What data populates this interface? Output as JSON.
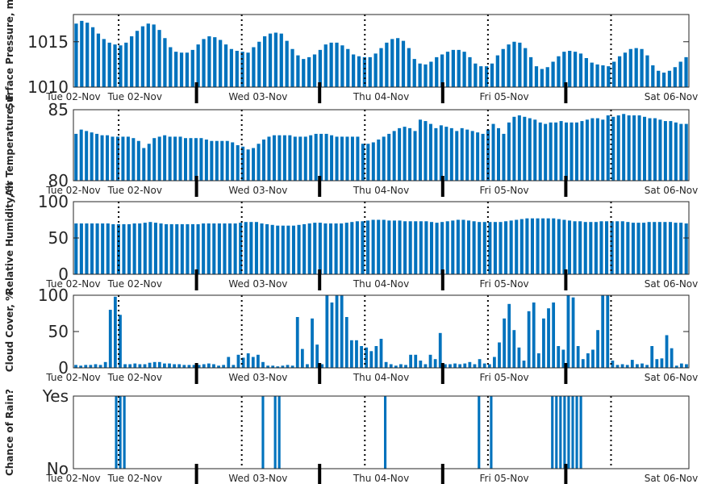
{
  "chart_data": [
    {
      "type": "bar",
      "ylabel": "Surface Pressure, mb",
      "ylim": [
        1010,
        1018
      ],
      "yticks": [
        1010,
        1015
      ],
      "xticklabels": [
        "Tue 02-Nov",
        "Tue 02-Nov",
        "Wed 03-Nov",
        "Thu 04-Nov",
        "Fri 05-Nov",
        "Sat 06-Nov"
      ],
      "color": "#0072bd",
      "values": [
        1017.0,
        1017.3,
        1017.1,
        1016.6,
        1015.9,
        1015.3,
        1014.9,
        1014.7,
        1014.6,
        1014.9,
        1015.6,
        1016.2,
        1016.7,
        1017.0,
        1016.9,
        1016.3,
        1015.4,
        1014.4,
        1013.9,
        1013.8,
        1013.8,
        1014.1,
        1014.7,
        1015.3,
        1015.6,
        1015.5,
        1015.2,
        1014.7,
        1014.2,
        1014.0,
        1013.9,
        1013.8,
        1014.4,
        1015.0,
        1015.6,
        1015.9,
        1016.0,
        1015.9,
        1015.1,
        1014.2,
        1013.5,
        1013.1,
        1013.3,
        1013.6,
        1014.1,
        1014.7,
        1014.9,
        1014.9,
        1014.6,
        1014.2,
        1013.6,
        1013.4,
        1013.3,
        1013.3,
        1013.7,
        1014.3,
        1014.9,
        1015.3,
        1015.4,
        1015.1,
        1014.3,
        1013.1,
        1012.6,
        1012.5,
        1012.8,
        1013.3,
        1013.6,
        1013.9,
        1014.1,
        1014.1,
        1013.9,
        1013.3,
        1012.6,
        1012.3,
        1012.3,
        1012.6,
        1013.5,
        1014.2,
        1014.7,
        1015.0,
        1014.9,
        1014.3,
        1013.3,
        1012.3,
        1012.0,
        1012.2,
        1012.8,
        1013.4,
        1013.9,
        1014.0,
        1013.9,
        1013.7,
        1013.2,
        1012.7,
        1012.5,
        1012.4,
        1012.3,
        1012.8,
        1013.4,
        1013.8,
        1014.2,
        1014.3,
        1014.2,
        1013.5,
        1012.4,
        1011.8,
        1011.6,
        1011.8,
        1012.2,
        1012.8,
        1013.3
      ]
    },
    {
      "type": "bar",
      "ylabel": "Air Temperature, F",
      "ylim": [
        80,
        85
      ],
      "yticks": [
        80,
        85
      ],
      "xticklabels": [
        "Tue 02-Nov",
        "Tue 02-Nov",
        "Wed 03-Nov",
        "Thu 04-Nov",
        "Fri 05-Nov",
        "Sat 06-Nov"
      ],
      "color": "#0072bd",
      "values": [
        83.3,
        83.6,
        83.5,
        83.4,
        83.3,
        83.2,
        83.2,
        83.1,
        83.1,
        83.1,
        83.1,
        83.0,
        82.8,
        82.3,
        82.6,
        83.0,
        83.1,
        83.2,
        83.1,
        83.1,
        83.1,
        83.0,
        83.0,
        83.0,
        83.0,
        82.9,
        82.8,
        82.8,
        82.8,
        82.8,
        82.7,
        82.5,
        82.4,
        82.2,
        82.3,
        82.6,
        82.9,
        83.1,
        83.2,
        83.2,
        83.2,
        83.2,
        83.1,
        83.1,
        83.1,
        83.2,
        83.3,
        83.3,
        83.3,
        83.2,
        83.1,
        83.1,
        83.1,
        83.1,
        83.1,
        82.6,
        82.6,
        82.7,
        82.9,
        83.1,
        83.3,
        83.5,
        83.7,
        83.8,
        83.7,
        83.5,
        84.3,
        84.2,
        84.0,
        83.7,
        83.9,
        83.8,
        83.7,
        83.5,
        83.7,
        83.6,
        83.5,
        83.4,
        83.3,
        83.6,
        84.0,
        83.7,
        83.3,
        84.1,
        84.5,
        84.6,
        84.5,
        84.4,
        84.3,
        84.1,
        84.0,
        84.1,
        84.1,
        84.2,
        84.1,
        84.1,
        84.1,
        84.2,
        84.3,
        84.4,
        84.4,
        84.3,
        84.6,
        84.5,
        84.6,
        84.7,
        84.6,
        84.6,
        84.6,
        84.5,
        84.4,
        84.4,
        84.3,
        84.2,
        84.2,
        84.1,
        84.0,
        84.0
      ]
    },
    {
      "type": "bar",
      "ylabel": "Relative Humidity, %",
      "ylim": [
        0,
        100
      ],
      "yticks": [
        0,
        50,
        100
      ],
      "xticklabels": [
        "Tue 02-Nov",
        "Tue 02-Nov",
        "Wed 03-Nov",
        "Thu 04-Nov",
        "Fri 05-Nov",
        "Sat 06-Nov"
      ],
      "color": "#0072bd",
      "values": [
        70,
        70,
        70,
        70,
        70,
        70,
        70,
        69,
        69,
        69,
        69,
        70,
        70,
        71,
        72,
        71,
        70,
        69,
        69,
        69,
        69,
        69,
        69,
        69,
        70,
        70,
        70,
        70,
        70,
        70,
        70,
        71,
        72,
        72,
        72,
        70,
        69,
        68,
        67,
        67,
        67,
        67,
        68,
        69,
        70,
        71,
        71,
        70,
        70,
        70,
        70,
        71,
        72,
        73,
        73,
        74,
        75,
        75,
        75,
        74,
        74,
        74,
        73,
        73,
        73,
        73,
        73,
        72,
        71,
        72,
        73,
        74,
        75,
        75,
        74,
        73,
        72,
        72,
        72,
        72,
        72,
        73,
        74,
        75,
        76,
        77,
        77,
        77,
        77,
        77,
        77,
        76,
        75,
        74,
        73,
        73,
        72,
        72,
        72,
        73,
        73,
        73,
        73,
        73,
        72,
        71,
        71,
        71,
        72,
        72,
        72,
        72,
        72,
        71,
        71,
        70
      ]
    },
    {
      "type": "bar",
      "ylabel": "Cloud Cover, %",
      "ylim": [
        0,
        100
      ],
      "yticks": [
        0,
        50,
        100
      ],
      "xticklabels": [
        "Tue 02-Nov",
        "Tue 02-Nov",
        "Wed 03-Nov",
        "Thu 04-Nov",
        "Fri 05-Nov",
        "Sat 06-Nov"
      ],
      "color": "#0072bd",
      "values": [
        4,
        3,
        4,
        4,
        5,
        4,
        8,
        80,
        98,
        73,
        5,
        5,
        6,
        5,
        5,
        7,
        8,
        8,
        6,
        6,
        5,
        5,
        4,
        4,
        4,
        4,
        5,
        6,
        5,
        3,
        4,
        15,
        4,
        18,
        14,
        20,
        15,
        18,
        8,
        3,
        3,
        2,
        3,
        4,
        3,
        70,
        26,
        5,
        68,
        32,
        5,
        100,
        90,
        100,
        100,
        70,
        38,
        38,
        30,
        28,
        23,
        30,
        40,
        8,
        5,
        3,
        5,
        4,
        18,
        18,
        10,
        5,
        18,
        12,
        48,
        5,
        5,
        6,
        5,
        6,
        8,
        5,
        12,
        6,
        5,
        15,
        35,
        68,
        88,
        52,
        28,
        10,
        78,
        90,
        20,
        68,
        82,
        90,
        30,
        25,
        100,
        97,
        30,
        12,
        20,
        25,
        52,
        100,
        100,
        10,
        4,
        5,
        4,
        11,
        5,
        6,
        4,
        30,
        12,
        13,
        45,
        27,
        3,
        6,
        5
      ]
    },
    {
      "type": "bar",
      "ylabel": "Chance of Rain?",
      "ylim": [
        0,
        1
      ],
      "yticklabels": [
        "No",
        "Yes"
      ],
      "xticklabels": [
        "Tue 02-Nov",
        "Tue 02-Nov",
        "Wed 03-Nov",
        "Thu 04-Nov",
        "Fri 05-Nov",
        "Sat 06-Nov"
      ],
      "color": "#0072bd",
      "values": [
        0,
        0,
        0,
        0,
        0,
        0,
        0,
        0,
        0,
        0,
        1,
        1,
        1,
        0,
        0,
        0,
        0,
        0,
        0,
        0,
        0,
        0,
        0,
        0,
        0,
        0,
        0,
        0,
        0,
        0,
        0,
        0,
        0,
        0,
        0,
        0,
        0,
        0,
        0,
        0,
        0,
        0,
        0,
        0,
        0,
        0,
        1,
        0,
        0,
        1,
        1,
        0,
        0,
        0,
        0,
        0,
        0,
        0,
        0,
        0,
        0,
        0,
        0,
        0,
        0,
        0,
        0,
        0,
        0,
        0,
        0,
        0,
        0,
        0,
        0,
        0,
        1,
        0,
        0,
        0,
        0,
        0,
        0,
        0,
        0,
        0,
        0,
        0,
        0,
        0,
        0,
        0,
        0,
        0,
        0,
        0,
        0,
        0,
        0,
        1,
        0,
        0,
        1,
        0,
        0,
        0,
        0,
        0,
        0,
        0,
        0,
        0,
        0,
        0,
        0,
        0,
        0,
        1,
        1,
        1,
        1,
        1,
        1,
        1,
        1,
        0,
        0,
        0,
        0,
        0,
        0,
        0,
        0,
        0,
        0,
        0,
        0,
        0,
        0,
        0,
        0,
        0,
        0,
        0,
        0,
        0,
        0,
        0,
        0,
        0,
        0
      ]
    }
  ]
}
